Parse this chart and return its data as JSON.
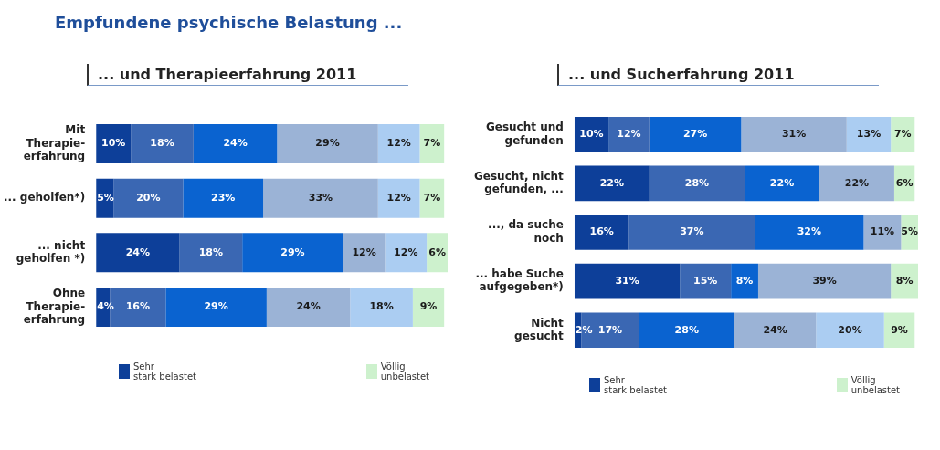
{
  "chart_data": [
    {
      "type": "bar",
      "orientation": "horizontal",
      "stacked": true,
      "title": "Empfundene psychische Belastung ...",
      "subtitle": "... und Therapieerfahrung 2011",
      "tick_labels": "y",
      "categories": [
        "Mit\nTherapie-\nerfahrung",
        "... geholfen*)",
        "... nicht\ngeholfen *)",
        "Ohne\nTherapie-\nerfahrung"
      ],
      "xlim": [
        0,
        101
      ],
      "legend": "bottom",
      "series": [
        {
          "name": "Sehr\nstark belastet",
          "color": "#0d3f99",
          "values": [
            10,
            5,
            24,
            4
          ],
          "value_labels": [
            "10%",
            "5%",
            "24%",
            "4%"
          ]
        },
        {
          "color": "#3a67b3",
          "values": [
            18,
            20,
            18,
            16
          ],
          "value_labels": [
            "18%",
            "20%",
            "18%",
            "16%"
          ]
        },
        {
          "color": "#0a63d0",
          "values": [
            24,
            23,
            29,
            29
          ],
          "value_labels": [
            "24%",
            "23%",
            "29%",
            "29%"
          ]
        },
        {
          "color": "#9bb3d6",
          "values": [
            29,
            33,
            12,
            24
          ],
          "value_labels": [
            "29%",
            "33%",
            "12%",
            "24%"
          ]
        },
        {
          "color": "#abcdf2",
          "values": [
            12,
            12,
            12,
            18
          ],
          "value_labels": [
            "12%",
            "12%",
            "12%",
            "18%"
          ]
        },
        {
          "name": "Völlig\nunbelastet",
          "color": "#cdf1cd",
          "values": [
            7,
            7,
            6,
            9
          ],
          "value_labels": [
            "7%",
            "7%",
            "6%",
            "9%"
          ]
        }
      ]
    },
    {
      "type": "bar",
      "orientation": "horizontal",
      "stacked": true,
      "subtitle": "... und Sucherfahrung 2011",
      "categories": [
        "Gesucht und\ngefunden",
        "Gesucht, nicht\ngefunden, ...",
        "..., da suche\nnoch",
        "... habe Suche\naufgegeben*)",
        "Nicht\ngesucht"
      ],
      "xlim": [
        0,
        101
      ],
      "tick_labels": "y",
      "legend": "bottom",
      "series": [
        {
          "name": "Sehr\nstark belastet",
          "color": "#0d3f99",
          "values": [
            10,
            22,
            16,
            31,
            2
          ],
          "value_labels": [
            "10%",
            "22%",
            "16%",
            "31%",
            "2%"
          ]
        },
        {
          "color": "#3a67b3",
          "values": [
            12,
            28,
            37,
            15,
            17
          ],
          "value_labels": [
            "12%",
            "28%",
            "37%",
            "15%",
            "17%"
          ]
        },
        {
          "color": "#0a63d0",
          "values": [
            27,
            22,
            32,
            8,
            28
          ],
          "value_labels": [
            "27%",
            "22%",
            "32%",
            "8%",
            "28%"
          ]
        },
        {
          "color": "#9bb3d6",
          "values": [
            31,
            22,
            11,
            39,
            24
          ],
          "value_labels": [
            "31%",
            "22%",
            "11%",
            "39%",
            "24%"
          ]
        },
        {
          "color": "#abcdf2",
          "values": [
            13,
            null,
            null,
            null,
            20
          ],
          "value_labels": [
            "13%",
            null,
            null,
            null,
            "20%"
          ]
        },
        {
          "name": "Völlig\nunbelastet",
          "color": "#cdf1cd",
          "values": [
            7,
            6,
            5,
            8,
            9
          ],
          "value_labels": [
            "7%",
            "6%",
            "5%",
            "8%",
            "9%"
          ]
        }
      ]
    }
  ]
}
